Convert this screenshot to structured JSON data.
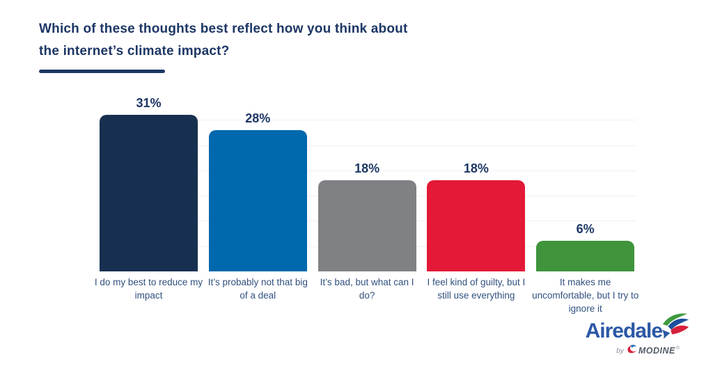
{
  "title": {
    "line1": "Which of these thoughts best reflect how you think about",
    "line2": "the internet’s climate impact?"
  },
  "chart_data": {
    "type": "bar",
    "title": "Which of these thoughts best reflect how you think about the internet’s climate impact?",
    "categories": [
      "I do my best to reduce my impact",
      "It’s probably not that big of a deal",
      "It’s bad, but what can I do?",
      "I feel kind of guilty, but I still use everything",
      "It makes me uncomfortable, but I try to ignore it"
    ],
    "values": [
      31,
      28,
      18,
      18,
      6
    ],
    "value_labels": [
      "31%",
      "28%",
      "18%",
      "18%",
      "6%"
    ],
    "bar_colors": [
      "#17304f",
      "#0068ad",
      "#808184",
      "#e31937",
      "#3f943c"
    ],
    "xlabel": "",
    "ylabel": "",
    "ylim": [
      0,
      35
    ],
    "grid": "horizontal gridlines every 5%, very light gray, no axis labels",
    "legend": "none",
    "value_label_color": "#1d3765",
    "category_label_color": "#31507f"
  },
  "branding": {
    "name": "Airedale",
    "byline_prefix": "by",
    "byline_brand": "MODINE",
    "trademark": "®",
    "wordmark_color": "#2b57a5",
    "pinwheel_colors": {
      "green": "#3f9a3f",
      "navy": "#1b4f9c",
      "red": "#d6203b",
      "blue": "#2b57a5"
    },
    "modine_swoosh_colors": {
      "red": "#d6203b",
      "blue": "#1f6cb5"
    }
  }
}
